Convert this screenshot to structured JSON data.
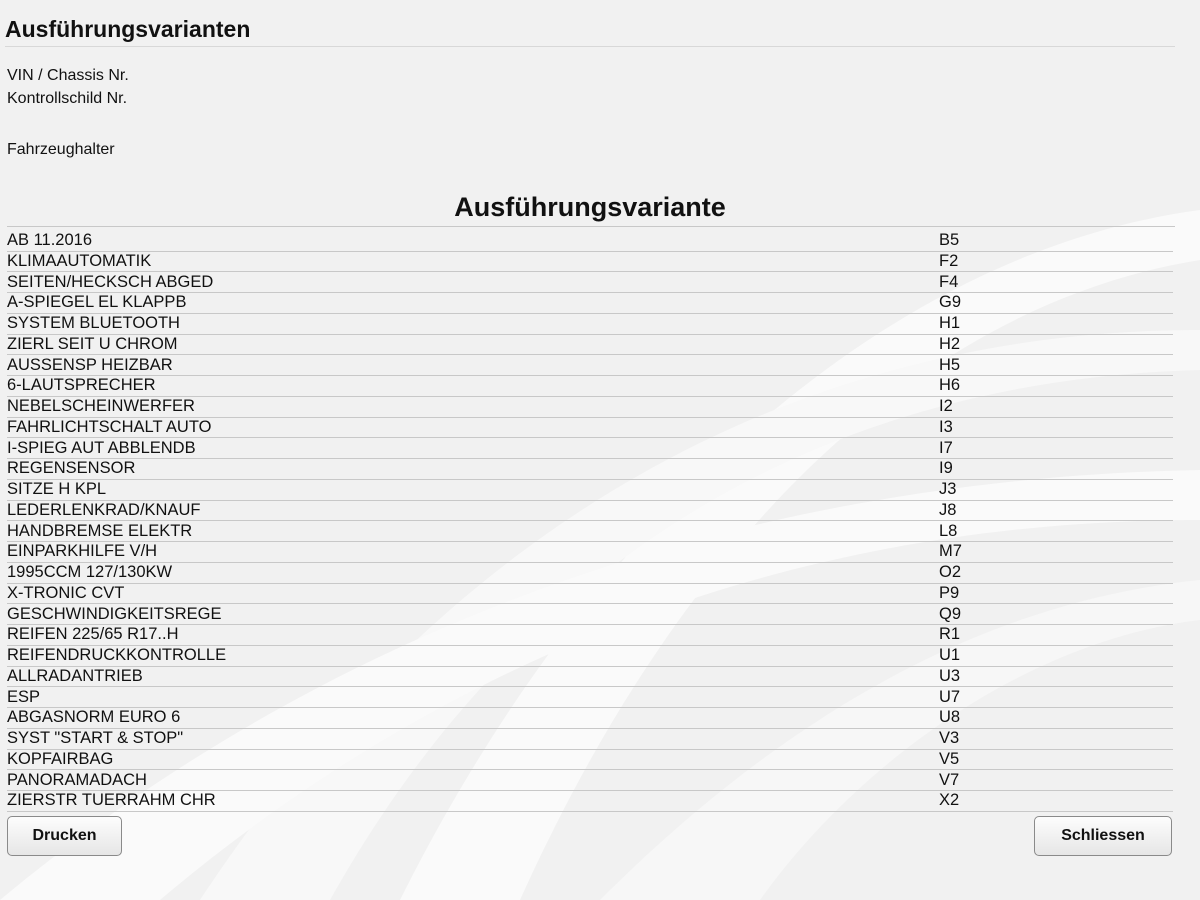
{
  "header": {
    "title": "Ausführungsvarianten"
  },
  "fields": [
    "VIN / Chassis Nr.",
    "Kontrollschild Nr.",
    "Fahrzeughalter"
  ],
  "section": {
    "title": "Ausführungsvariante"
  },
  "table": {
    "rows": [
      [
        "AB 11.2016",
        "B5"
      ],
      [
        "KLIMAAUTOMATIK",
        "F2"
      ],
      [
        "SEITEN/HECKSCH ABGED",
        "F4"
      ],
      [
        "A-SPIEGEL EL KLAPPB",
        "G9"
      ],
      [
        "SYSTEM BLUETOOTH",
        "H1"
      ],
      [
        "ZIERL SEIT U CHROM",
        "H2"
      ],
      [
        "AUSSENSP HEIZBAR",
        "H5"
      ],
      [
        "6-LAUTSPRECHER",
        "H6"
      ],
      [
        "NEBELSCHEINWERFER",
        "I2"
      ],
      [
        "FAHRLICHTSCHALT AUTO",
        "I3"
      ],
      [
        "I-SPIEG AUT ABBLENDB",
        "I7"
      ],
      [
        "REGENSENSOR",
        "I9"
      ],
      [
        "SITZE H KPL",
        "J3"
      ],
      [
        "LEDERLENKRAD/KNAUF",
        "J8"
      ],
      [
        "HANDBREMSE ELEKTR",
        "L8"
      ],
      [
        "EINPARKHILFE V/H",
        "M7"
      ],
      [
        "1995CCM 127/130KW",
        "O2"
      ],
      [
        "X-TRONIC CVT",
        "P9"
      ],
      [
        "GESCHWINDIGKEITSREGE",
        "Q9"
      ],
      [
        "REIFEN 225/65 R17..H",
        "R1"
      ],
      [
        "REIFENDRUCKKONTROLLE",
        "U1"
      ],
      [
        "ALLRADANTRIEB",
        "U3"
      ],
      [
        "ESP",
        "U7"
      ],
      [
        "ABGASNORM EURO 6",
        "U8"
      ],
      [
        "SYST \"START & STOP\"",
        "V3"
      ],
      [
        "KOPFAIRBAG",
        "V5"
      ],
      [
        "PANORAMADACH",
        "V7"
      ],
      [
        "ZIERSTR TUERRAHM CHR",
        "X2"
      ]
    ]
  },
  "buttons": {
    "print": "Drucken",
    "close": "Schliessen"
  }
}
